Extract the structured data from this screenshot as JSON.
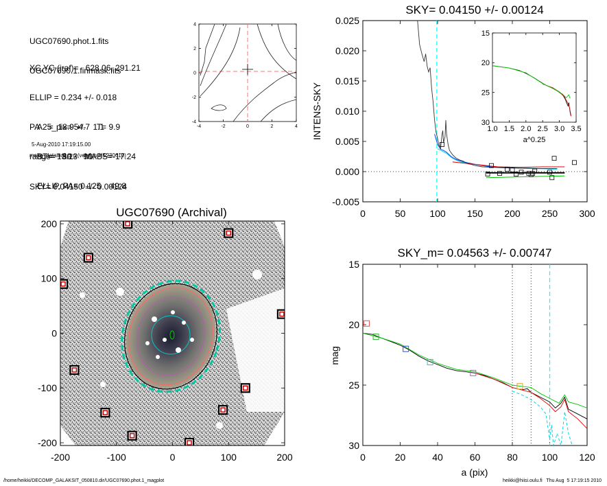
{
  "info": {
    "lines_a": [
      "UGC07690.phot.1.fits",
      "UGC07690.1.finmask.fits"
    ],
    "lines_b": [
      "XC,YC (iraf)=   628.06, 291.21",
      "ELLIP = 0.234 +/- 0.018",
      "PA    =  18.9 +/-   1.1",
      "range=   80.-   90.",
      "SKY= 0.04150 +/- 0.00124"
    ],
    "lines_c": [
      "A25_pix= 54.7   T= 9.9",
      "BT=  13.13   MABS=-17.24",
      "ELLIP, PA= 0.125    49.8"
    ],
    "date": "5-Aug-2010 17:19:15.00",
    "program": "make_datalist0.pro (version HS230610)"
  },
  "footer": {
    "left": "/home/heikki/DECOMP_GALAKSIT_050810.dir/UGC07690.phot.1_magplot",
    "right": "heikki@hiisi.oulu.fi   Thu Aug  5 17:19:15 2010"
  },
  "colors": {
    "data": "#000000",
    "sky_line": "#00ffff",
    "series_green": "#00c800",
    "series_red": "#e00000",
    "series_blue": "#0044ff",
    "series_cyan": "#00d8e8",
    "mask_red": "#cc0000",
    "contour_dash": "#ff6666"
  },
  "chart_data": [
    {
      "id": "contour",
      "type": "contour",
      "title": "",
      "xlabel": "",
      "ylabel": "",
      "xlim": [
        -4,
        4
      ],
      "ylim": [
        -4,
        4
      ],
      "xticks": [
        "-4",
        "-2",
        "0",
        "2",
        "4"
      ],
      "yticks": [
        "-4",
        "-2",
        "0",
        "2",
        "4"
      ],
      "center": [
        0,
        0
      ]
    },
    {
      "id": "sky",
      "type": "line",
      "title": "SKY= 0.04150 +/- 0.00124",
      "xlabel": "",
      "ylabel": "INTENS-SKY",
      "xlim": [
        0,
        300
      ],
      "ylim": [
        -0.005,
        0.025
      ],
      "xticks": [
        "0",
        "50",
        "100",
        "150",
        "200",
        "250",
        "300"
      ],
      "yticks": [
        "-0.005",
        "0.000",
        "0.005",
        "0.010",
        "0.015",
        "0.020",
        "0.025"
      ],
      "vline": 99,
      "profile": [
        [
          73,
          0.0252
        ],
        [
          76,
          0.021
        ],
        [
          79,
          0.0195
        ],
        [
          82,
          0.0182
        ],
        [
          84,
          0.0195
        ],
        [
          86,
          0.0175
        ],
        [
          88,
          0.0165
        ],
        [
          90,
          0.0172
        ],
        [
          92,
          0.0138
        ],
        [
          94,
          0.0115
        ],
        [
          96,
          0.0085
        ],
        [
          98,
          0.0065
        ],
        [
          100,
          0.0055
        ],
        [
          102,
          0.0042
        ],
        [
          104,
          0.0038
        ],
        [
          106,
          0.0062
        ],
        [
          107,
          0.0068
        ],
        [
          108,
          0.0048
        ],
        [
          110,
          0.0058
        ],
        [
          111,
          0.0085
        ],
        [
          112,
          0.0062
        ],
        [
          114,
          0.0045
        ],
        [
          116,
          0.0035
        ],
        [
          120,
          0.0028
        ],
        [
          125,
          0.0022
        ],
        [
          130,
          0.0019
        ],
        [
          135,
          0.0017
        ],
        [
          140,
          0.0013
        ],
        [
          145,
          0.0012
        ],
        [
          150,
          0.001
        ],
        [
          160,
          0.0008
        ],
        [
          175,
          0.0007
        ],
        [
          190,
          0.0006
        ],
        [
          210,
          0.0006
        ],
        [
          230,
          0.0005
        ],
        [
          250,
          0.0005
        ],
        [
          260,
          0.0005
        ]
      ],
      "blue": [
        [
          96,
          0.0062
        ],
        [
          100,
          0.0045
        ],
        [
          104,
          0.0037
        ],
        [
          108,
          0.0035
        ],
        [
          112,
          0.0032
        ],
        [
          118,
          0.0025
        ],
        [
          125,
          0.002
        ],
        [
          135,
          0.0016
        ],
        [
          150,
          0.0012
        ],
        [
          170,
          0.0008
        ],
        [
          200,
          0.0006
        ],
        [
          230,
          0.0005
        ],
        [
          255,
          0.0005
        ]
      ],
      "cyan": [
        [
          100,
          0.0038
        ],
        [
          106,
          0.0034
        ],
        [
          112,
          0.003
        ],
        [
          120,
          0.0022
        ],
        [
          130,
          0.0016
        ],
        [
          145,
          0.0013
        ],
        [
          160,
          0.001
        ],
        [
          180,
          0.0008
        ],
        [
          210,
          0.0006
        ],
        [
          240,
          0.0005
        ],
        [
          260,
          0.0004
        ]
      ],
      "red": [
        [
          120,
          0.0016
        ],
        [
          150,
          0.0012
        ],
        [
          180,
          0.0008
        ],
        [
          210,
          0.0007
        ],
        [
          240,
          0.0008
        ],
        [
          270,
          0.0008
        ]
      ],
      "green": [
        [
          165,
          -0.001
        ],
        [
          200,
          -0.0009
        ],
        [
          240,
          -0.0008
        ],
        [
          270,
          -0.0007
        ]
      ],
      "black_flat": [
        [
          165,
          -0.0002
        ],
        [
          270,
          -0.0002
        ]
      ],
      "squares": [
        [
          106,
          0.0045
        ],
        [
          167,
          -0.0004
        ],
        [
          172,
          0.001
        ],
        [
          183,
          -0.0003
        ],
        [
          193,
          0.0004
        ],
        [
          200,
          0.0003
        ],
        [
          205,
          -0.0004
        ],
        [
          212,
          -0.0001
        ],
        [
          222,
          -0.0003
        ],
        [
          225,
          -0.0005
        ],
        [
          227,
          -0.0003
        ],
        [
          230,
          0.0001
        ],
        [
          250,
          -0.0001
        ],
        [
          253,
          -0.001
        ],
        [
          256,
          0.0022
        ],
        [
          283,
          0.0015
        ]
      ],
      "inset": {
        "xlabel": "a^0.25",
        "xlim": [
          1.0,
          3.5
        ],
        "ylim": [
          30,
          15
        ],
        "xticks": [
          "1.0",
          "1.5",
          "2.0",
          "2.5",
          "3.0",
          "3.5"
        ],
        "yticks": [
          "15",
          "20",
          "25",
          "30"
        ],
        "black": [
          [
            1.0,
            20.5
          ],
          [
            1.5,
            20.9
          ],
          [
            1.8,
            21.3
          ],
          [
            2.0,
            21.8
          ],
          [
            2.2,
            22.4
          ],
          [
            2.4,
            23.1
          ],
          [
            2.6,
            23.8
          ],
          [
            2.8,
            24.3
          ],
          [
            2.95,
            24.8
          ],
          [
            3.05,
            25.2
          ],
          [
            3.12,
            25.6
          ],
          [
            3.18,
            26.2
          ],
          [
            3.22,
            26.8
          ],
          [
            3.26,
            27.3
          ],
          [
            3.28,
            26.7
          ],
          [
            3.3,
            27.5
          ],
          [
            3.32,
            28.3
          ],
          [
            3.34,
            28.9
          ]
        ],
        "red": [
          [
            2.5,
            23.6
          ],
          [
            2.8,
            24.2
          ],
          [
            3.0,
            24.9
          ],
          [
            3.15,
            25.7
          ],
          [
            3.25,
            26.8
          ],
          [
            3.3,
            27.4
          ],
          [
            3.35,
            29.0
          ]
        ],
        "green": [
          [
            1.0,
            20.5
          ],
          [
            1.5,
            20.9
          ],
          [
            2.0,
            21.7
          ],
          [
            2.5,
            23.5
          ],
          [
            2.9,
            24.6
          ],
          [
            3.1,
            25.3
          ],
          [
            3.2,
            25.9
          ],
          [
            3.28,
            25.4
          ],
          [
            3.32,
            26.0
          ]
        ]
      }
    },
    {
      "id": "image",
      "type": "scatter",
      "title": "UGC07690 (Archival)",
      "xlabel": "",
      "ylabel": "",
      "xlim": [
        -200,
        200
      ],
      "ylim": [
        -205,
        205
      ],
      "xticks": [
        "-200",
        "-100",
        "0",
        "100",
        "200"
      ],
      "yticks": [
        "-200",
        "-100",
        "0",
        "100",
        "200"
      ],
      "mask_boxes": [
        [
          -80,
          200
        ],
        [
          100,
          183
        ],
        [
          -150,
          138
        ],
        [
          -195,
          90
        ],
        [
          195,
          35
        ],
        [
          -175,
          -67
        ],
        [
          130,
          -100
        ],
        [
          -120,
          -145
        ],
        [
          90,
          -140
        ],
        [
          -72,
          -187
        ],
        [
          30,
          -200
        ]
      ]
    },
    {
      "id": "mag",
      "type": "line",
      "title": "SKY_m=  0.04563 +/- 0.00747",
      "xlabel": "a (pix)",
      "ylabel": "mag",
      "xlim": [
        0,
        120
      ],
      "ylim": [
        30,
        15
      ],
      "xticks": [
        "0",
        "20",
        "40",
        "60",
        "80",
        "100",
        "120"
      ],
      "yticks": [
        "15",
        "20",
        "25",
        "30"
      ],
      "vlines_dotted": [
        80,
        90
      ],
      "vline_sky": 100,
      "black": [
        [
          0,
          20.7
        ],
        [
          5,
          20.8
        ],
        [
          10,
          21.1
        ],
        [
          15,
          21.4
        ],
        [
          20,
          21.7
        ],
        [
          25,
          22.1
        ],
        [
          30,
          22.6
        ],
        [
          35,
          23.0
        ],
        [
          40,
          23.3
        ],
        [
          45,
          23.6
        ],
        [
          50,
          23.8
        ],
        [
          55,
          23.9
        ],
        [
          60,
          24.0
        ],
        [
          65,
          24.2
        ],
        [
          70,
          24.5
        ],
        [
          75,
          24.8
        ],
        [
          80,
          25.2
        ],
        [
          85,
          25.4
        ],
        [
          88,
          25.3
        ],
        [
          90,
          25.6
        ],
        [
          95,
          26.0
        ],
        [
          100,
          26.4
        ],
        [
          103,
          26.9
        ],
        [
          106,
          26.5
        ],
        [
          108,
          26.0
        ],
        [
          110,
          27.0
        ],
        [
          115,
          27.4
        ],
        [
          120,
          27.8
        ]
      ],
      "red": [
        [
          60,
          24.0
        ],
        [
          70,
          24.5
        ],
        [
          80,
          25.2
        ],
        [
          85,
          25.4
        ],
        [
          90,
          25.6
        ],
        [
          95,
          26.1
        ],
        [
          100,
          26.7
        ],
        [
          103,
          27.2
        ],
        [
          106,
          26.8
        ],
        [
          108,
          26.2
        ],
        [
          110,
          27.2
        ],
        [
          115,
          27.8
        ],
        [
          120,
          28.6
        ]
      ],
      "green": [
        [
          0,
          20.7
        ],
        [
          10,
          21.1
        ],
        [
          20,
          21.6
        ],
        [
          30,
          22.5
        ],
        [
          40,
          23.2
        ],
        [
          50,
          23.7
        ],
        [
          60,
          23.9
        ],
        [
          70,
          24.4
        ],
        [
          80,
          25.0
        ],
        [
          85,
          25.1
        ],
        [
          90,
          25.2
        ],
        [
          95,
          25.7
        ],
        [
          100,
          26.1
        ],
        [
          105,
          26.5
        ],
        [
          108,
          25.8
        ],
        [
          110,
          26.4
        ],
        [
          115,
          26.6
        ],
        [
          120,
          26.9
        ]
      ],
      "cyan_dash": [
        [
          80,
          25.5
        ],
        [
          85,
          25.8
        ],
        [
          90,
          26.2
        ],
        [
          95,
          26.8
        ],
        [
          98,
          27.4
        ],
        [
          100,
          29.5
        ],
        [
          101,
          28.3
        ],
        [
          102,
          30.0
        ],
        [
          104,
          29.0
        ],
        [
          106,
          30.0
        ],
        [
          107,
          28.6
        ],
        [
          108,
          27.2
        ],
        [
          110,
          29.0
        ],
        [
          112,
          30.0
        ]
      ],
      "squares": [
        [
          2,
          19.9
        ],
        [
          7,
          21.0
        ],
        [
          23,
          22.0
        ],
        [
          36,
          23.1
        ],
        [
          59,
          24.0
        ],
        [
          84,
          25.1
        ]
      ],
      "square_colors": [
        "#e05050",
        "#30b030",
        "#3050e0",
        "#30c0c0",
        "#d050d0",
        "#e0a020"
      ]
    }
  ]
}
